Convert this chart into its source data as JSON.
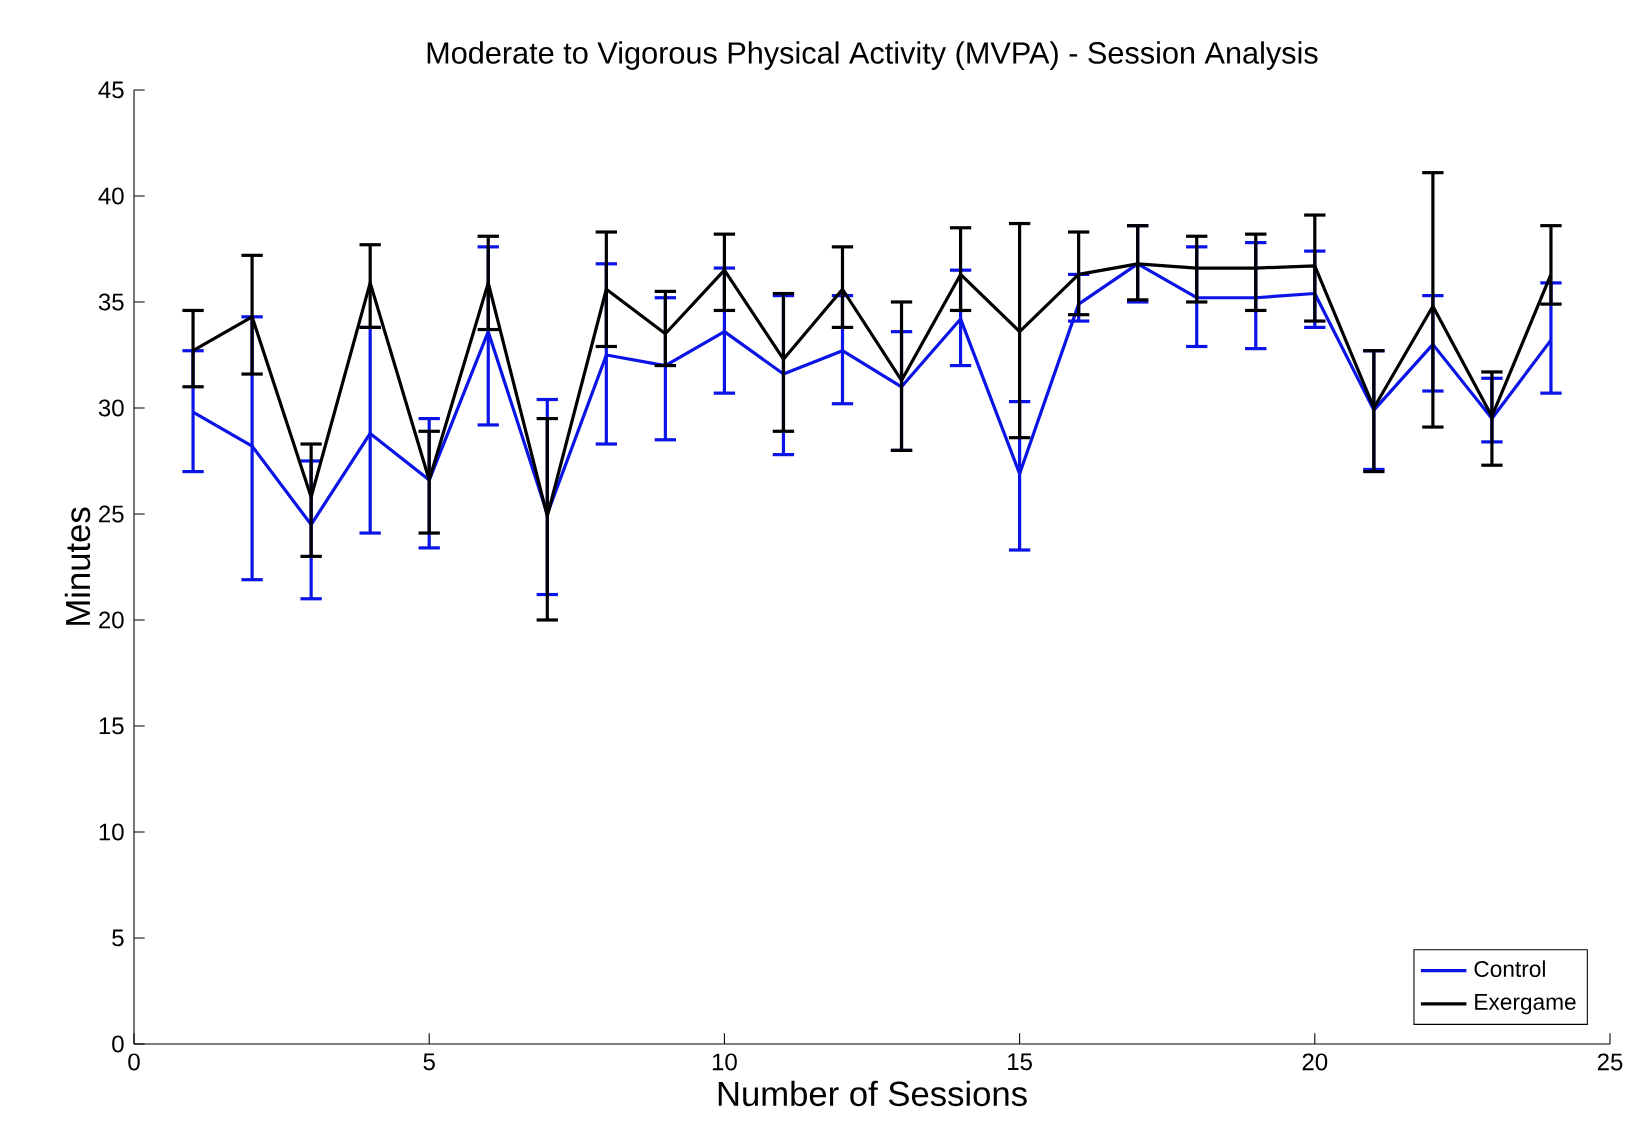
{
  "chart_data": {
    "type": "line",
    "title": "Moderate to Vigorous Physical Activity (MVPA) - Session Analysis",
    "xlabel": "Number of Sessions",
    "ylabel": "Minutes",
    "x": [
      1,
      2,
      3,
      4,
      5,
      6,
      7,
      8,
      9,
      10,
      11,
      12,
      13,
      14,
      15,
      16,
      17,
      18,
      19,
      20,
      21,
      22,
      23,
      24
    ],
    "series": [
      {
        "name": "Control",
        "color": "#0a14e6",
        "values": [
          29.8,
          28.2,
          24.5,
          28.8,
          26.6,
          33.6,
          25.0,
          32.5,
          32.0,
          33.6,
          31.6,
          32.7,
          31.0,
          34.2,
          26.9,
          34.9,
          36.8,
          35.2,
          35.2,
          35.4,
          29.9,
          33.0,
          29.5,
          33.2
        ],
        "errors": [
          [
            27.0,
            32.7
          ],
          [
            21.9,
            34.3
          ],
          [
            21.0,
            27.5
          ],
          [
            24.1,
            33.8
          ],
          [
            23.4,
            29.5
          ],
          [
            29.2,
            37.6
          ],
          [
            21.2,
            30.4
          ],
          [
            28.3,
            36.8
          ],
          [
            28.5,
            35.2
          ],
          [
            30.7,
            36.6
          ],
          [
            27.8,
            35.3
          ],
          [
            30.2,
            35.3
          ],
          [
            28.0,
            33.6
          ],
          [
            32.0,
            36.5
          ],
          [
            23.3,
            30.3
          ],
          [
            34.1,
            36.3
          ],
          [
            35.0,
            38.6
          ],
          [
            32.9,
            37.6
          ],
          [
            32.8,
            37.8
          ],
          [
            33.8,
            37.4
          ],
          [
            27.1,
            32.7
          ],
          [
            30.8,
            35.3
          ],
          [
            28.4,
            31.4
          ],
          [
            30.7,
            35.9
          ]
        ]
      },
      {
        "name": "Exergame",
        "color": "#000000",
        "values": [
          32.7,
          34.3,
          25.8,
          35.9,
          26.6,
          35.9,
          24.9,
          35.6,
          33.5,
          36.5,
          32.3,
          35.6,
          31.3,
          36.3,
          33.6,
          36.3,
          36.8,
          36.6,
          36.6,
          36.7,
          30.0,
          34.8,
          29.6,
          36.3
        ],
        "errors": [
          [
            31.0,
            34.6
          ],
          [
            31.6,
            37.2
          ],
          [
            23.0,
            28.3
          ],
          [
            33.8,
            37.7
          ],
          [
            24.1,
            28.9
          ],
          [
            33.7,
            38.1
          ],
          [
            20.0,
            29.5
          ],
          [
            32.9,
            38.3
          ],
          [
            32.0,
            35.5
          ],
          [
            34.6,
            38.2
          ],
          [
            28.9,
            35.4
          ],
          [
            33.8,
            37.6
          ],
          [
            28.0,
            35.0
          ],
          [
            34.6,
            38.5
          ],
          [
            28.6,
            38.7
          ],
          [
            34.4,
            38.3
          ],
          [
            35.1,
            38.6
          ],
          [
            35.0,
            38.1
          ],
          [
            34.6,
            38.2
          ],
          [
            34.1,
            39.1
          ],
          [
            27.0,
            32.7
          ],
          [
            29.1,
            41.1
          ],
          [
            27.3,
            31.7
          ],
          [
            34.9,
            38.6
          ]
        ]
      }
    ],
    "xlim": [
      0,
      25
    ],
    "xticks": [
      0,
      5,
      10,
      15,
      20,
      25
    ],
    "ylim": [
      0,
      45
    ],
    "yticks": [
      0,
      5,
      10,
      15,
      20,
      25,
      30,
      35,
      40,
      45
    ],
    "grid": false,
    "legend": "bottom right",
    "marker": "none",
    "line_style": "solid"
  }
}
